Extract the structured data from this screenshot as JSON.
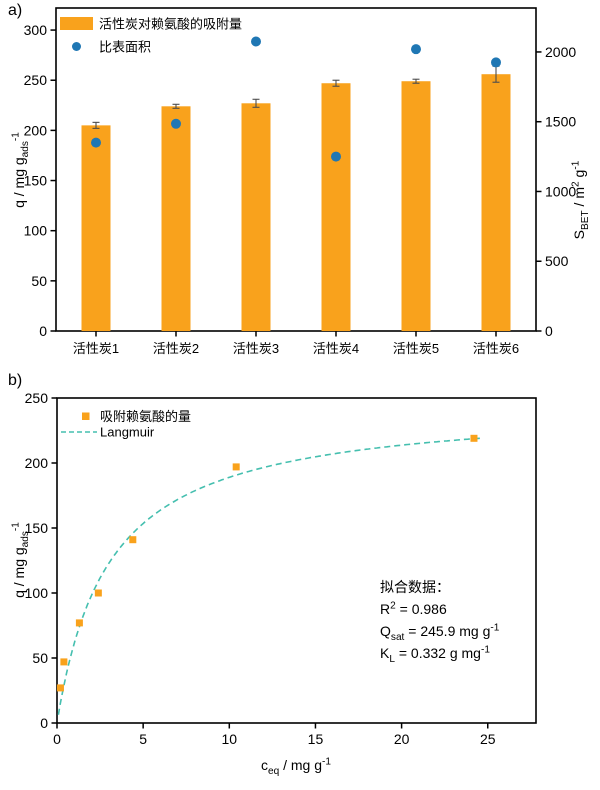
{
  "page": {
    "panel_a_label": "a)",
    "panel_b_label": "b)"
  },
  "colors": {
    "orange": "#F9A21C",
    "blue": "#1F77B4",
    "teal": "#45BFAF",
    "axis": "#000000",
    "error": "#4D4D4D",
    "text": "#000000"
  },
  "chart_data": [
    {
      "panel": "a",
      "type": "bar",
      "categories": [
        "活性炭1",
        "活性炭2",
        "活性炭3",
        "活性炭4",
        "活性炭5",
        "活性炭6"
      ],
      "series": [
        {
          "name": "活性炭对赖氨酸的吸附量",
          "type": "bar",
          "axis": "left",
          "values": [
            205,
            224,
            227,
            247,
            249,
            256
          ],
          "errors": [
            3,
            2,
            4,
            3,
            2,
            8
          ],
          "color_key": "orange"
        },
        {
          "name": "比表面积",
          "type": "scatter",
          "axis": "right",
          "values": [
            1350,
            1485,
            2075,
            1250,
            2020,
            1925
          ],
          "color_key": "blue"
        }
      ],
      "left_axis": {
        "label_segments": [
          {
            "t": "q / mg g"
          },
          {
            "t": "ads",
            "sub": true
          },
          {
            "t": "-1",
            "sup": true
          }
        ],
        "ticks": [
          0,
          50,
          100,
          150,
          200,
          250,
          300
        ],
        "max": 322
      },
      "right_axis": {
        "label_segments": [
          {
            "t": "S"
          },
          {
            "t": "BET",
            "sub": true
          },
          {
            "t": " / m"
          },
          {
            "t": "2",
            "sup": true
          },
          {
            "t": " g"
          },
          {
            "t": "-1",
            "sup": true
          }
        ],
        "ticks": [
          0,
          500,
          1000,
          1500,
          2000
        ],
        "max": 2315
      },
      "legend_position": "top-left",
      "grid": false
    },
    {
      "panel": "b",
      "type": "scatter",
      "series": [
        {
          "name": "吸附赖氨酸的量",
          "type": "scatter",
          "points": [
            [
              0.2,
              27
            ],
            [
              0.4,
              47
            ],
            [
              1.3,
              77
            ],
            [
              2.4,
              100
            ],
            [
              4.4,
              141
            ],
            [
              10.4,
              197
            ],
            [
              24.2,
              219
            ]
          ],
          "color_key": "orange"
        },
        {
          "name": "Langmuir",
          "type": "line",
          "style": "dashed",
          "fit": {
            "qsat": 245.9,
            "kl": 0.332,
            "c_min": 0.08,
            "c_max": 24.6
          },
          "color_key": "teal"
        }
      ],
      "x_axis": {
        "label_segments": [
          {
            "t": "c"
          },
          {
            "t": "eq",
            "sub": true
          },
          {
            "t": " / mg g"
          },
          {
            "t": "-1",
            "sup": true
          }
        ],
        "ticks": [
          0,
          5,
          10,
          15,
          20,
          25
        ],
        "max": 27.8
      },
      "y_axis": {
        "label_segments": [
          {
            "t": "q / mg g"
          },
          {
            "t": "ads",
            "sub": true
          },
          {
            "t": "-1",
            "sup": true
          }
        ],
        "ticks": [
          0,
          50,
          100,
          150,
          200,
          250
        ],
        "max": 250
      },
      "annotation": {
        "lines": [
          [
            {
              "t": "拟合数据："
            }
          ],
          [
            {
              "t": "R"
            },
            {
              "t": "2",
              "sup": true
            },
            {
              "t": " = 0.986"
            }
          ],
          [
            {
              "t": "Q"
            },
            {
              "t": "sat",
              "sub": true
            },
            {
              "t": " = 245.9 mg g"
            },
            {
              "t": "-1",
              "sup": true
            }
          ],
          [
            {
              "t": "K"
            },
            {
              "t": "L",
              "sub": true
            },
            {
              "t": " = 0.332 g mg"
            },
            {
              "t": "-1",
              "sup": true
            }
          ]
        ]
      },
      "legend_position": "top-left",
      "grid": false
    }
  ]
}
